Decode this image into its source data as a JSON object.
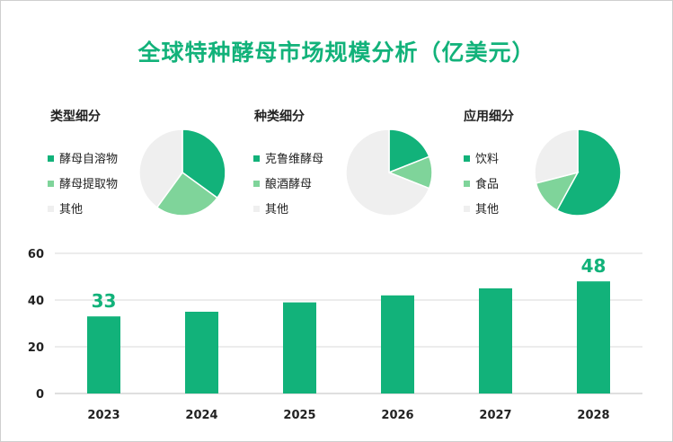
{
  "title": "全球特种酵母市场规模分析（亿美元）",
  "colors": {
    "dark": "#12b27a",
    "light": "#7fd49a",
    "gray": "#efefef",
    "title": "#12b27a"
  },
  "pies": [
    {
      "title": "类型细分",
      "legend": [
        "酵母自溶物",
        "酵母提取物",
        "其他"
      ],
      "values": [
        35,
        25,
        40
      ]
    },
    {
      "title": "种类细分",
      "legend": [
        "克鲁维酵母",
        "酿酒酵母",
        "其他"
      ],
      "values": [
        19,
        12,
        69
      ]
    },
    {
      "title": "应用细分",
      "legend": [
        "饮料",
        "食品",
        "其他"
      ],
      "values": [
        58,
        13,
        29
      ]
    }
  ],
  "chart_data": {
    "type": "bar",
    "categories": [
      "2023",
      "2024",
      "2025",
      "2026",
      "2027",
      "2028"
    ],
    "values": [
      33,
      35,
      39,
      42,
      45,
      48
    ],
    "data_labels": [
      "33",
      "",
      "",
      "",
      "",
      "48"
    ],
    "ylim": [
      0,
      60
    ],
    "yticks": [
      "0",
      "20",
      "40",
      "60"
    ],
    "grid": true
  }
}
